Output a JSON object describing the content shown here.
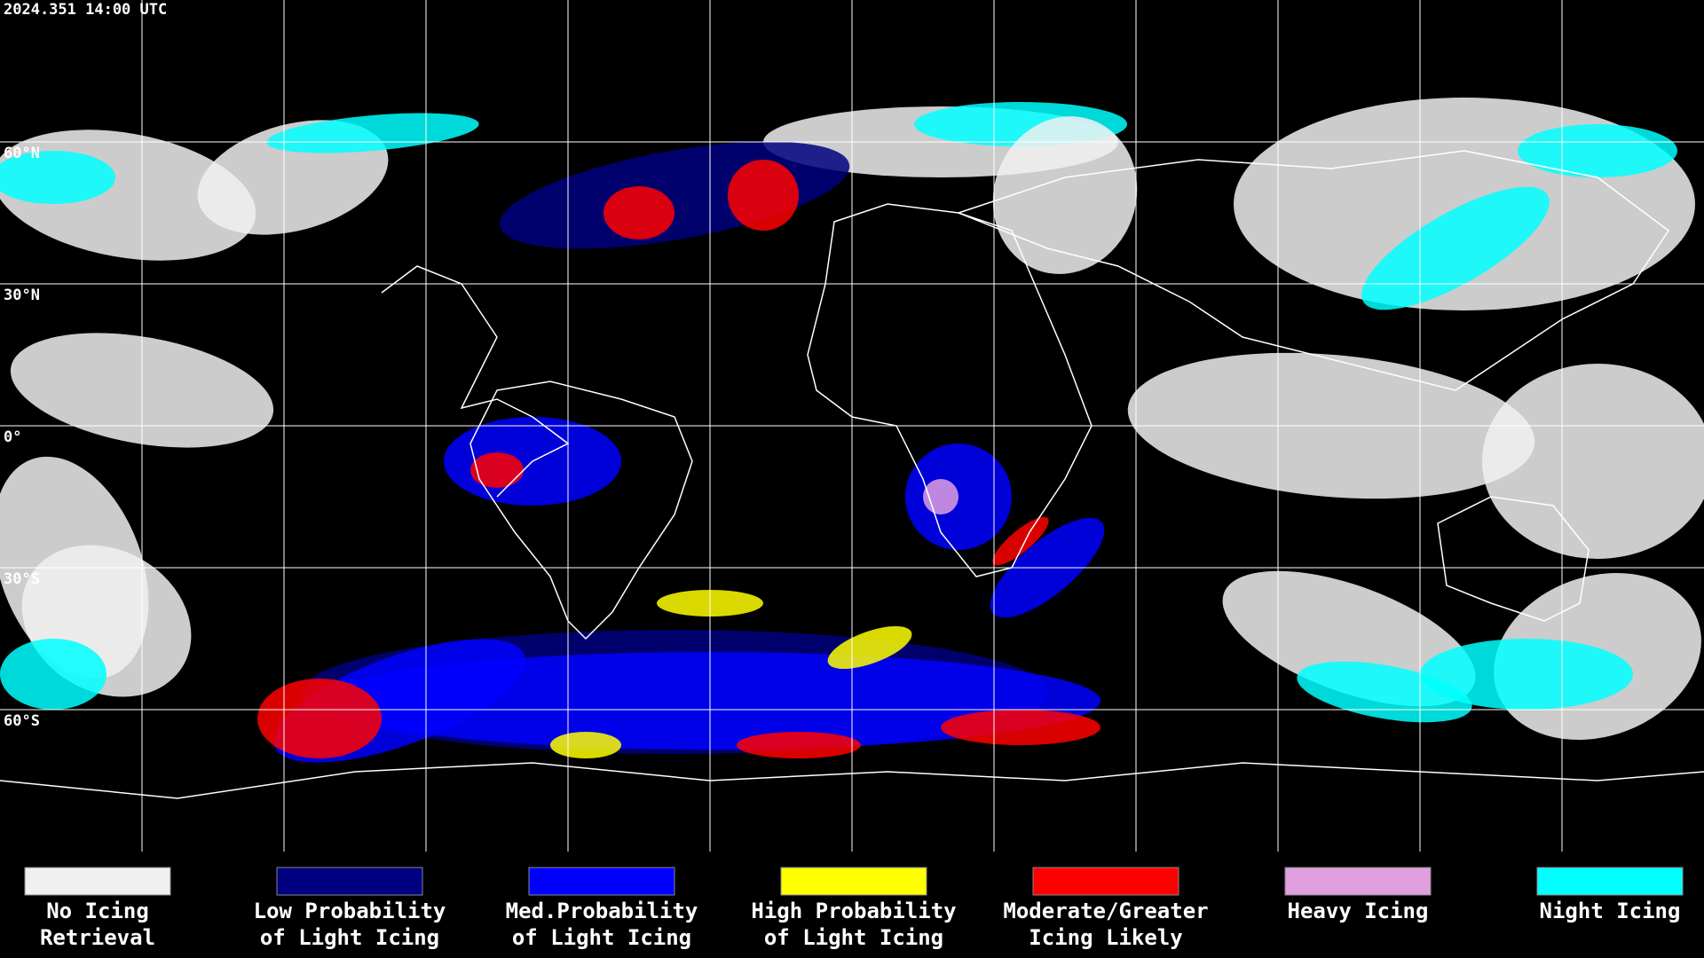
{
  "header": {
    "timestamp": "2024.351 14:00 UTC"
  },
  "map": {
    "latitude_labels": [
      "60°N",
      "30°N",
      "0°",
      "30°S",
      "60°S"
    ]
  },
  "legend": {
    "items": [
      {
        "color": "#f0f0f0",
        "label_lines": [
          "No Icing",
          "Retrieval"
        ]
      },
      {
        "color": "#000080",
        "label_lines": [
          "Low Probability",
          "of Light Icing"
        ]
      },
      {
        "color": "#0000ff",
        "label_lines": [
          "Med.Probability",
          "of Light Icing"
        ]
      },
      {
        "color": "#ffff00",
        "label_lines": [
          "High Probability",
          "of Light Icing"
        ]
      },
      {
        "color": "#ff0000",
        "label_lines": [
          "Moderate/Greater",
          "Icing Likely"
        ]
      },
      {
        "color": "#e0a0e0",
        "label_lines": [
          "Heavy Icing"
        ]
      },
      {
        "color": "#00ffff",
        "label_lines": [
          "Night Icing"
        ]
      }
    ]
  }
}
